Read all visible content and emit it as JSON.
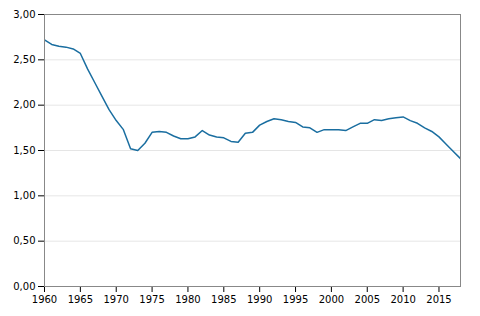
{
  "chart_data": {
    "type": "line",
    "x": [
      1960,
      1961,
      1962,
      1963,
      1964,
      1965,
      1966,
      1967,
      1968,
      1969,
      1970,
      1971,
      1972,
      1973,
      1974,
      1975,
      1976,
      1977,
      1978,
      1979,
      1980,
      1981,
      1982,
      1983,
      1984,
      1985,
      1986,
      1987,
      1988,
      1989,
      1990,
      1991,
      1992,
      1993,
      1994,
      1995,
      1996,
      1997,
      1998,
      1999,
      2000,
      2001,
      2002,
      2003,
      2004,
      2005,
      2006,
      2007,
      2008,
      2009,
      2010,
      2011,
      2012,
      2013,
      2014,
      2015,
      2016,
      2017,
      2018
    ],
    "values": [
      2.72,
      2.67,
      2.65,
      2.64,
      2.62,
      2.57,
      2.4,
      2.25,
      2.1,
      1.95,
      1.83,
      1.73,
      1.52,
      1.5,
      1.58,
      1.7,
      1.71,
      1.7,
      1.66,
      1.63,
      1.63,
      1.65,
      1.72,
      1.67,
      1.65,
      1.64,
      1.6,
      1.59,
      1.69,
      1.7,
      1.78,
      1.82,
      1.85,
      1.84,
      1.82,
      1.81,
      1.76,
      1.75,
      1.7,
      1.73,
      1.73,
      1.73,
      1.72,
      1.76,
      1.8,
      1.8,
      1.84,
      1.83,
      1.85,
      1.86,
      1.87,
      1.83,
      1.8,
      1.75,
      1.71,
      1.65,
      1.57,
      1.49,
      1.41
    ],
    "color": "#1a6ea0",
    "xlim": [
      1960,
      2018
    ],
    "ylim": [
      0.0,
      3.0
    ],
    "xticks": [
      1960,
      1965,
      1970,
      1975,
      1980,
      1985,
      1990,
      1995,
      2000,
      2005,
      2010,
      2015
    ],
    "yticks": [
      {
        "value": 0.0,
        "label": "0,00"
      },
      {
        "value": 0.5,
        "label": "0,50"
      },
      {
        "value": 1.0,
        "label": "1,00"
      },
      {
        "value": 1.5,
        "label": "1,50"
      },
      {
        "value": 2.0,
        "label": "2,00"
      },
      {
        "value": 2.5,
        "label": "2,50"
      },
      {
        "value": 3.0,
        "label": "3,00"
      }
    ],
    "grid": "y"
  }
}
